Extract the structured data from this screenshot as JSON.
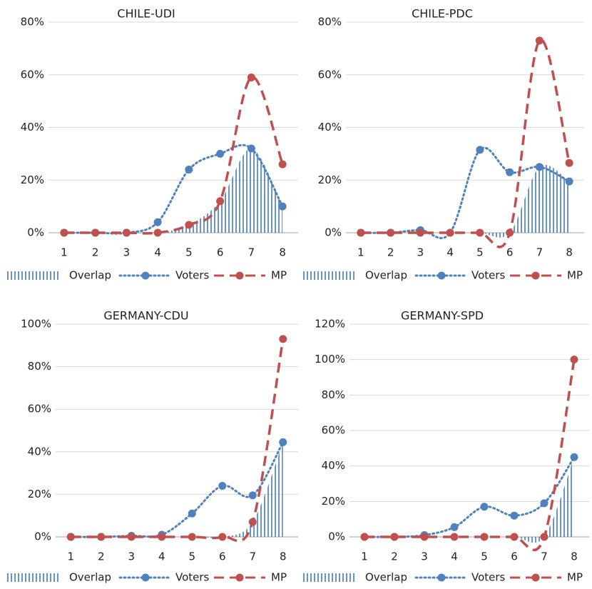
{
  "chart_data": [
    {
      "type": "line",
      "title": "CHILE-UDI",
      "categories": [
        "1",
        "2",
        "3",
        "4",
        "5",
        "6",
        "7",
        "8"
      ],
      "ylim": [
        0,
        80
      ],
      "yticks": [
        {
          "value": 0,
          "label": "0%"
        },
        {
          "value": 20,
          "label": "20%"
        },
        {
          "value": 40,
          "label": "40%"
        },
        {
          "value": 60,
          "label": "60%"
        },
        {
          "value": 80,
          "label": "80%"
        }
      ],
      "grid": true,
      "legend": "bottom",
      "series": [
        {
          "name": "Overlap",
          "color": "#4f81bd",
          "mark": "area",
          "values": [
            0,
            0,
            0,
            0,
            3,
            12,
            32,
            10
          ]
        },
        {
          "name": "Voters",
          "color": "#4f81bd",
          "mark": "dotted",
          "values": [
            0,
            0,
            0,
            4,
            24,
            30,
            32,
            10
          ]
        },
        {
          "name": "MP",
          "color": "#c0504d",
          "mark": "dashed",
          "values": [
            0,
            0,
            0,
            0,
            3,
            12,
            59,
            26
          ]
        }
      ]
    },
    {
      "type": "line",
      "title": "CHILE-PDC",
      "categories": [
        "1",
        "2",
        "3",
        "4",
        "5",
        "6",
        "7",
        "8"
      ],
      "ylim": [
        0,
        80
      ],
      "yticks": [
        {
          "value": 0,
          "label": "0%"
        },
        {
          "value": 20,
          "label": "20%"
        },
        {
          "value": 40,
          "label": "40%"
        },
        {
          "value": 60,
          "label": "60%"
        },
        {
          "value": 80,
          "label": "80%"
        }
      ],
      "grid": true,
      "legend": "bottom",
      "series": [
        {
          "name": "Overlap",
          "color": "#4f81bd",
          "mark": "area",
          "values": [
            0,
            0,
            0,
            0,
            0,
            0,
            25,
            19.5
          ]
        },
        {
          "name": "Voters",
          "color": "#4f81bd",
          "mark": "dotted",
          "values": [
            0,
            0,
            1,
            0,
            31.5,
            23,
            25,
            19.5
          ]
        },
        {
          "name": "MP",
          "color": "#c0504d",
          "mark": "dashed",
          "values": [
            0,
            0,
            0,
            0,
            0,
            0,
            73,
            26.5
          ]
        }
      ]
    },
    {
      "type": "line",
      "title": "GERMANY-CDU",
      "categories": [
        "1",
        "2",
        "3",
        "4",
        "5",
        "6",
        "7",
        "8"
      ],
      "ylim": [
        0,
        100
      ],
      "yticks": [
        {
          "value": 0,
          "label": "0%"
        },
        {
          "value": 20,
          "label": "20%"
        },
        {
          "value": 40,
          "label": "40%"
        },
        {
          "value": 60,
          "label": "60%"
        },
        {
          "value": 80,
          "label": "80%"
        },
        {
          "value": 100,
          "label": "100%"
        }
      ],
      "grid": true,
      "legend": "bottom",
      "series": [
        {
          "name": "Overlap",
          "color": "#4f81bd",
          "mark": "area",
          "values": [
            0,
            0,
            0,
            0,
            0,
            0,
            7,
            44.5
          ]
        },
        {
          "name": "Voters",
          "color": "#4f81bd",
          "mark": "dotted",
          "values": [
            0,
            0,
            0.5,
            1,
            11,
            24,
            19.5,
            44.5
          ]
        },
        {
          "name": "MP",
          "color": "#c0504d",
          "mark": "dashed",
          "values": [
            0,
            0,
            0,
            0,
            0,
            0,
            7,
            93
          ]
        }
      ]
    },
    {
      "type": "line",
      "title": "GERMANY-SPD",
      "categories": [
        "1",
        "2",
        "3",
        "4",
        "5",
        "6",
        "7",
        "8"
      ],
      "ylim": [
        0,
        120
      ],
      "yticks": [
        {
          "value": 0,
          "label": "0%"
        },
        {
          "value": 20,
          "label": "20%"
        },
        {
          "value": 40,
          "label": "40%"
        },
        {
          "value": 60,
          "label": "60%"
        },
        {
          "value": 80,
          "label": "80%"
        },
        {
          "value": 100,
          "label": "100%"
        },
        {
          "value": 120,
          "label": "120%"
        }
      ],
      "grid": true,
      "legend": "bottom",
      "series": [
        {
          "name": "Overlap",
          "color": "#4f81bd",
          "mark": "area",
          "values": [
            0,
            0,
            0,
            0,
            0,
            0,
            0,
            45
          ]
        },
        {
          "name": "Voters",
          "color": "#4f81bd",
          "mark": "dotted",
          "values": [
            0,
            0,
            1,
            5.5,
            17,
            12,
            19,
            45
          ]
        },
        {
          "name": "MP",
          "color": "#c0504d",
          "mark": "dashed",
          "values": [
            0,
            0,
            0,
            0,
            0,
            0,
            0,
            100
          ]
        }
      ]
    }
  ]
}
